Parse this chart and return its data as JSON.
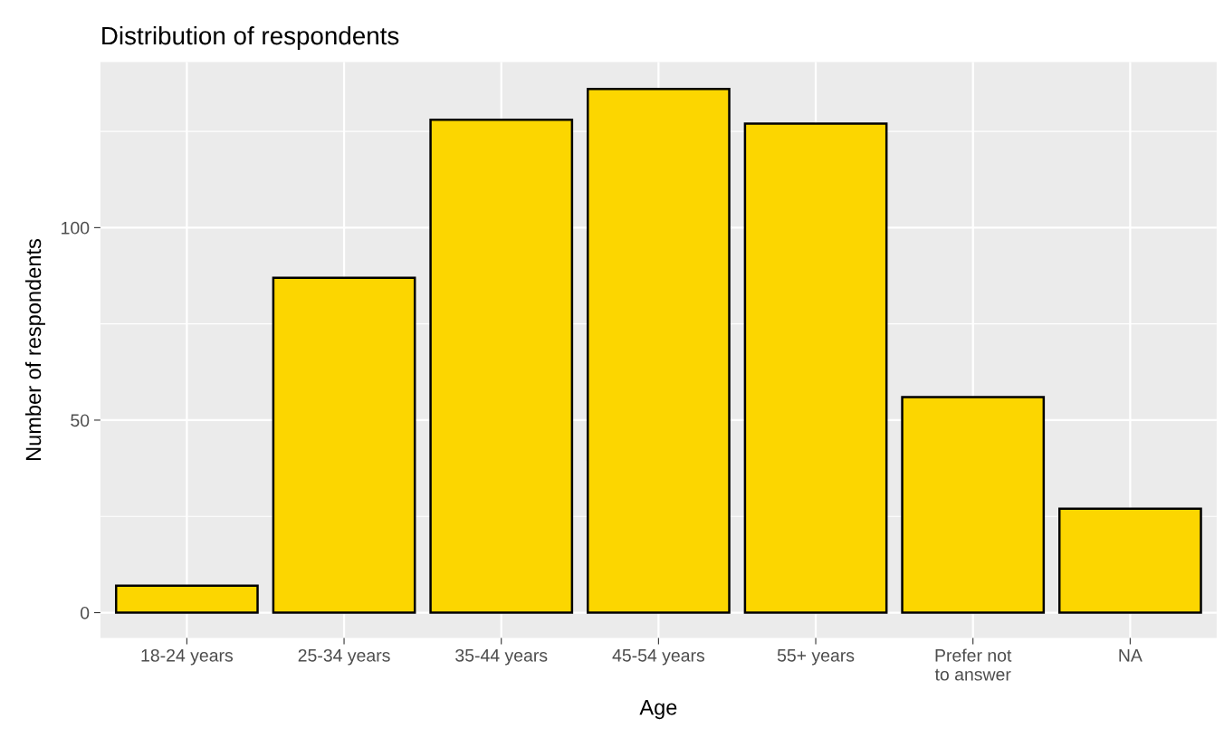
{
  "chart_data": {
    "type": "bar",
    "title": "Distribution of respondents",
    "xlabel": "Age",
    "ylabel": "Number of respondents",
    "categories": [
      "18-24 years",
      "25-34 years",
      "35-44 years",
      "45-54 years",
      "55+ years",
      "Prefer not\nto answer",
      "NA"
    ],
    "values": [
      7,
      87,
      128,
      136,
      127,
      56,
      27
    ],
    "color": "#fcd600",
    "ylim": [
      -6.6,
      143
    ],
    "yticks": [
      0,
      50,
      100
    ],
    "grid": true
  }
}
